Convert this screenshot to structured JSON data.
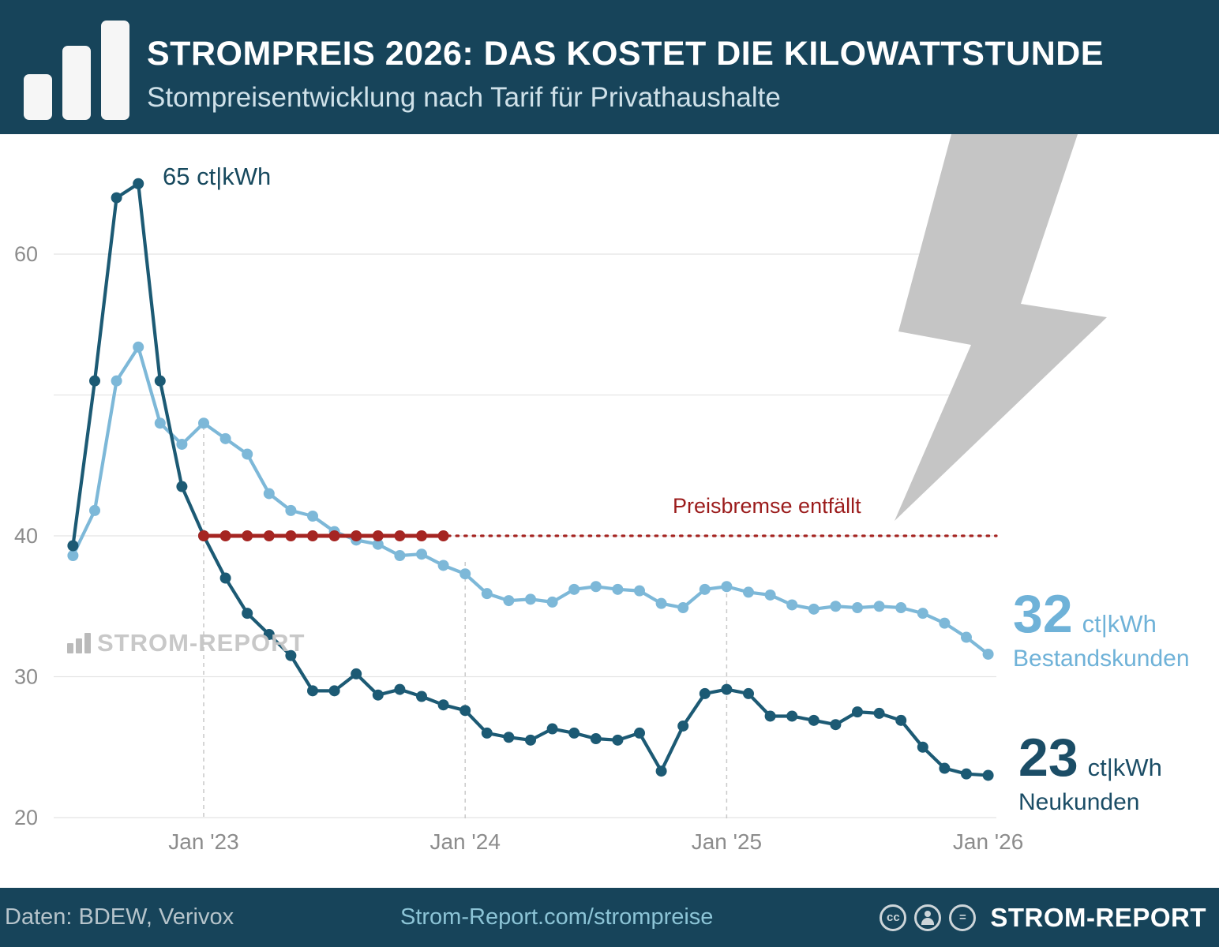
{
  "header": {
    "title": "STROMPREIS 2026: DAS KOSTET DIE KILOWATTSTUNDE",
    "subtitle": "Stompreisentwicklung nach Tarif für Privathaushalte"
  },
  "colors": {
    "header_bg": "#17445a",
    "neukunden": "#1c5a74",
    "bestandskunden": "#7db8d8",
    "reference_red": "#a52522",
    "annotation_light": "#6fb2d8",
    "annotation_dark": "#1b4d66",
    "watermark_gray": "#c5c5c5"
  },
  "chart_data": {
    "type": "line",
    "title": "Strompreis 2026: Das kostet die Kilowattstunde",
    "subtitle": "Strompreisentwicklung nach Tarif für Privathaushalte, ct/kWh",
    "x_start": "Jul 2022",
    "x_freq": "monthly",
    "x_tick_labels": [
      "Jan '23",
      "Jan '24",
      "Jan '25",
      "Jan '26"
    ],
    "x_tick_month_indices": [
      6,
      18,
      30,
      42
    ],
    "y_ticks": [
      60,
      40,
      30,
      20
    ],
    "y_gridlines": [
      60,
      50,
      40,
      30,
      20
    ],
    "ylim": [
      18,
      68
    ],
    "grid": true,
    "legend_position": "right-inline",
    "series": [
      {
        "name": "Neukunden",
        "color": "#1c5a74",
        "final_label": {
          "value": "23",
          "unit": "ct|kWh",
          "label": "Neukunden"
        },
        "values": [
          39.3,
          51.0,
          64.0,
          65.0,
          51.0,
          43.5,
          40.0,
          37.0,
          34.5,
          33.0,
          31.5,
          29.0,
          29.0,
          30.2,
          28.7,
          29.1,
          28.6,
          28.0,
          27.6,
          26.0,
          25.7,
          25.5,
          26.3,
          26.0,
          25.6,
          25.5,
          26.0,
          23.3,
          26.5,
          28.8,
          29.1,
          28.8,
          27.2,
          27.2,
          26.9,
          26.6,
          27.5,
          27.4,
          26.9,
          25.0,
          23.5,
          23.1,
          23.0
        ]
      },
      {
        "name": "Bestandskunden",
        "color": "#7db8d8",
        "final_label": {
          "value": "32",
          "unit": "ct|kWh",
          "label": "Bestandskunden"
        },
        "values": [
          38.6,
          41.8,
          51.0,
          53.4,
          48.0,
          46.5,
          48.0,
          46.9,
          45.8,
          43.0,
          41.8,
          41.4,
          40.3,
          39.7,
          39.4,
          38.6,
          38.7,
          37.9,
          37.3,
          35.9,
          35.4,
          35.5,
          35.3,
          36.2,
          36.4,
          36.2,
          36.1,
          35.2,
          34.9,
          36.2,
          36.4,
          36.0,
          35.8,
          35.1,
          34.8,
          35.0,
          34.9,
          35.0,
          34.9,
          34.5,
          33.8,
          32.8,
          31.6
        ]
      }
    ],
    "reference_line": {
      "value": 40,
      "label": "Preisbremse entfällt",
      "color": "#a52522",
      "solid_month_range": [
        6,
        17
      ],
      "style_after": "dotted"
    },
    "peak_annotation": {
      "text": "65 ct|kWh",
      "series": "Neukunden",
      "month_index": 3,
      "value": 65
    }
  },
  "watermark": {
    "text": "STROM-REPORT"
  },
  "footer": {
    "source": "Daten: BDEW, Verivox",
    "url": "Strom-Report.com/strompreise",
    "brand": "STROM-REPORT",
    "license_icons": [
      {
        "name": "cc-icon",
        "glyph": "cc"
      },
      {
        "name": "attribution-icon",
        "glyph": "person"
      },
      {
        "name": "equal-icon",
        "glyph": "="
      }
    ]
  }
}
